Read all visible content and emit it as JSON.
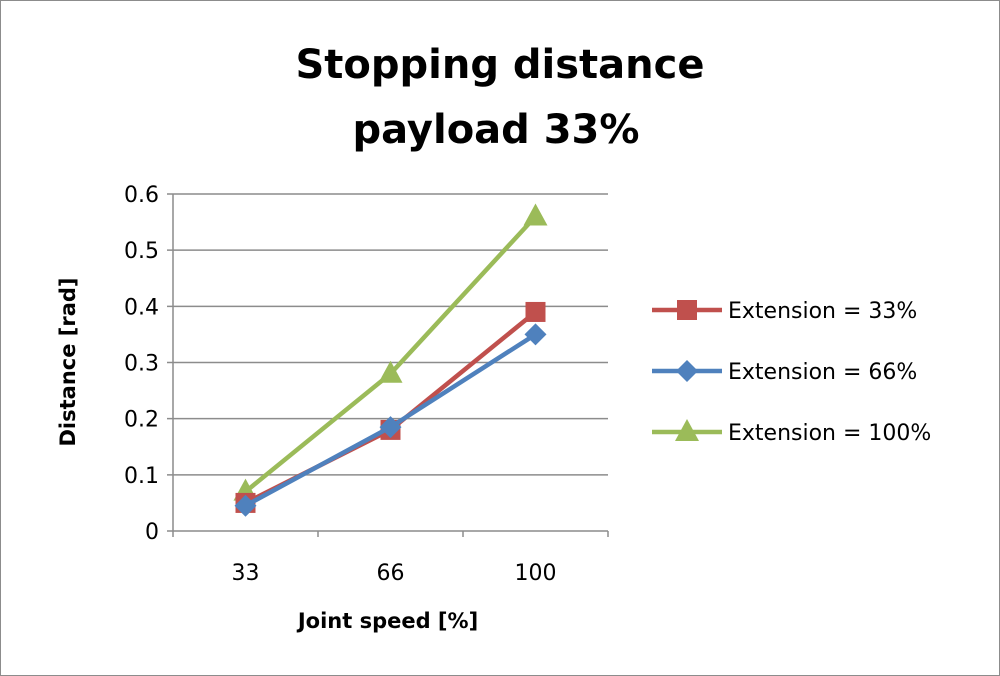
{
  "chart_data": {
    "type": "line",
    "title": "Stopping distance",
    "subtitle": "payload 33%",
    "xlabel": "Joint speed [%]",
    "ylabel": "Distance [rad]",
    "categories": [
      "33",
      "66",
      "100"
    ],
    "ylim": [
      0,
      0.6
    ],
    "yticks": [
      "0",
      "0.1",
      "0.2",
      "0.3",
      "0.4",
      "0.5",
      "0.6"
    ],
    "grid": true,
    "legend_position": "right",
    "series": [
      {
        "name": "Extension = 33%",
        "values": [
          0.05,
          0.18,
          0.39
        ],
        "color": "#c0504d",
        "marker": "square"
      },
      {
        "name": "Extension = 66%",
        "values": [
          0.045,
          0.185,
          0.35
        ],
        "color": "#4f81bd",
        "marker": "diamond"
      },
      {
        "name": "Extension = 100%",
        "values": [
          0.07,
          0.28,
          0.56
        ],
        "color": "#9bbb59",
        "marker": "triangle"
      }
    ]
  }
}
